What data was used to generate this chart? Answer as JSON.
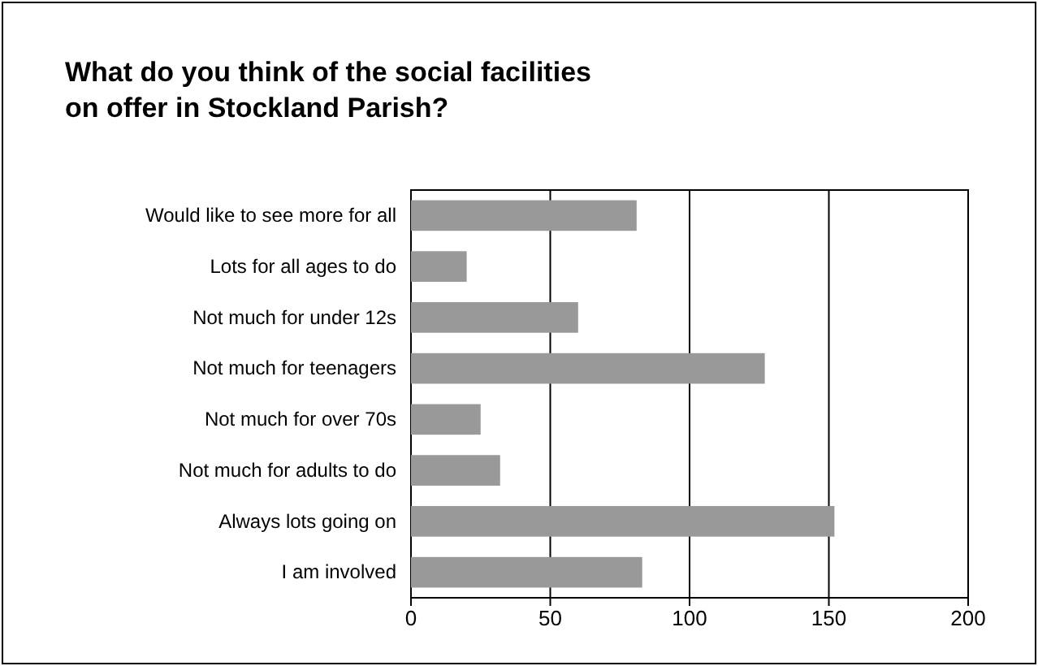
{
  "chart_data": {
    "type": "bar",
    "orientation": "horizontal",
    "title": "What do you think of the social facilities on offer in Stockland Parish?",
    "categories": [
      "Would like to see more for all",
      "Lots for all ages to do",
      "Not much for under 12s",
      "Not much for teenagers",
      "Not much for over 70s",
      "Not much for adults to do",
      "Always lots going on",
      "I am involved"
    ],
    "values": [
      81,
      20,
      60,
      127,
      25,
      32,
      152,
      83
    ],
    "color": "#999999",
    "xlim": [
      0,
      200
    ],
    "xticks": [
      0,
      50,
      100,
      150,
      200
    ],
    "grid": "x"
  }
}
